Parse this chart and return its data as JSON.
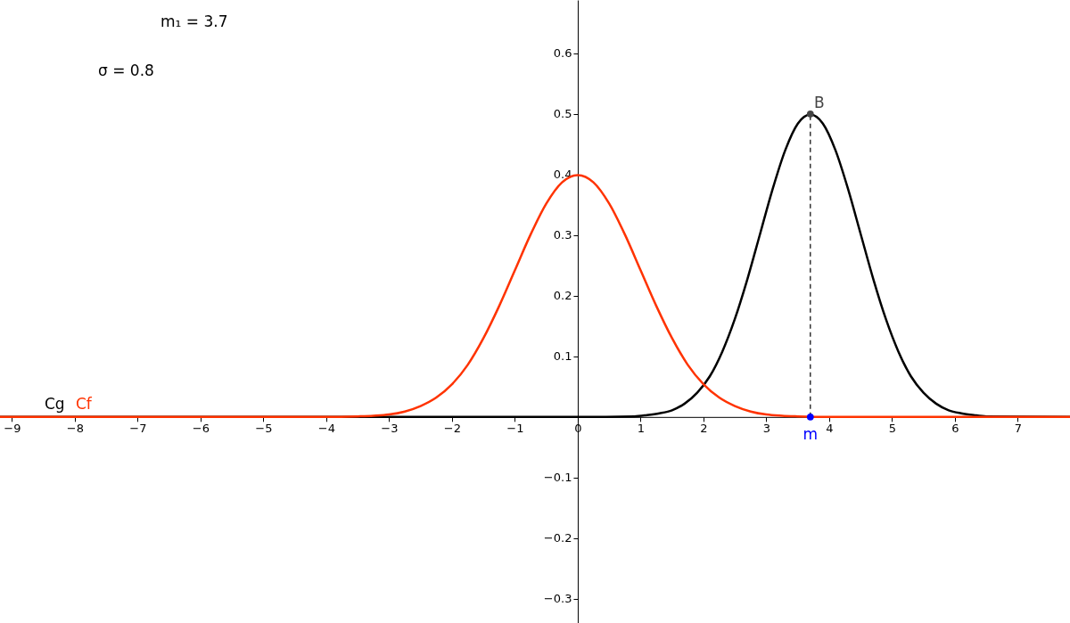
{
  "chart_data": {
    "type": "line",
    "xlim": [
      -9.19,
      7.83
    ],
    "ylim": [
      -0.34,
      0.688
    ],
    "xticks": [
      -9,
      -8,
      -7,
      -6,
      -5,
      -4,
      -3,
      -2,
      -1,
      0,
      1,
      2,
      3,
      4,
      5,
      6,
      7
    ],
    "yticks": [
      -0.3,
      -0.2,
      -0.1,
      0.1,
      0.2,
      0.3,
      0.4,
      0.5,
      0.6
    ],
    "grid": false,
    "series": [
      {
        "name": "Cg",
        "color": "#000000",
        "x": [
          -9.19,
          0,
          0.9,
          1.1,
          1.3,
          1.5,
          1.7,
          1.9,
          2.1,
          2.3,
          2.5,
          2.7,
          2.9,
          3.1,
          3.3,
          3.5,
          3.7,
          3.9,
          4.1,
          4.3,
          4.5,
          4.7,
          4.9,
          5.1,
          5.3,
          5.5,
          5.7,
          5.9,
          6.1,
          6.3,
          6.5,
          7.83
        ],
        "values": [
          0,
          0,
          0.001,
          0.003,
          0.006,
          0.011,
          0.022,
          0.04,
          0.067,
          0.108,
          0.162,
          0.228,
          0.302,
          0.376,
          0.44,
          0.484,
          0.499,
          0.484,
          0.44,
          0.376,
          0.302,
          0.228,
          0.162,
          0.108,
          0.067,
          0.04,
          0.022,
          0.011,
          0.006,
          0.003,
          0.001,
          0
        ]
      },
      {
        "name": "Cf",
        "color": "#ff3300",
        "x": [
          -9.19,
          -4,
          -3.5,
          -3.25,
          -3,
          -2.75,
          -2.5,
          -2.25,
          -2,
          -1.75,
          -1.5,
          -1.25,
          -1,
          -0.75,
          -0.5,
          -0.25,
          0,
          0.25,
          0.5,
          0.75,
          1,
          1.25,
          1.5,
          1.75,
          2,
          2.25,
          2.5,
          2.75,
          3,
          3.25,
          3.5,
          4,
          7.83
        ],
        "values": [
          0,
          0,
          0.001,
          0.002,
          0.004,
          0.009,
          0.018,
          0.032,
          0.054,
          0.086,
          0.13,
          0.183,
          0.242,
          0.301,
          0.352,
          0.387,
          0.399,
          0.387,
          0.352,
          0.301,
          0.242,
          0.183,
          0.13,
          0.086,
          0.054,
          0.032,
          0.018,
          0.009,
          0.004,
          0.002,
          0.001,
          0,
          0
        ]
      },
      {
        "line_style": "dashed",
        "color": "#000000",
        "x": [
          3.7,
          3.7
        ],
        "values": [
          0,
          0.5
        ]
      },
      {
        "name": "B",
        "type": "scatter",
        "color": "#444444",
        "x": [
          3.7
        ],
        "values": [
          0.5
        ]
      },
      {
        "name": "m",
        "type": "scatter",
        "color": "#0000ff",
        "x": [
          3.7
        ],
        "values": [
          0
        ]
      }
    ],
    "annotations": [
      "m₁ = 3.7",
      "σ = 0.8"
    ]
  }
}
